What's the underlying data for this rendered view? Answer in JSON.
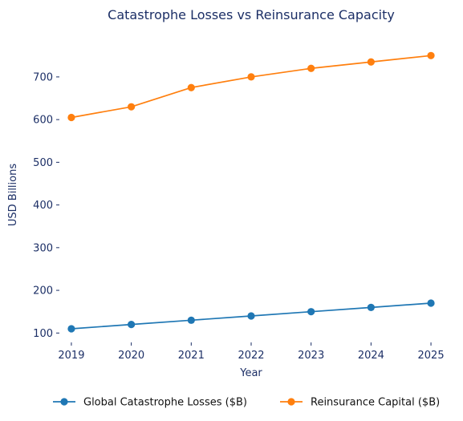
{
  "chart_data": {
    "type": "line",
    "title": "Catastrophe Losses vs Reinsurance Capacity",
    "xlabel": "Year",
    "ylabel": "USD Billions",
    "x": [
      2019,
      2020,
      2021,
      2022,
      2023,
      2024,
      2025
    ],
    "xticks": [
      2019,
      2020,
      2021,
      2022,
      2023,
      2024,
      2025
    ],
    "yticks": [
      100,
      200,
      300,
      400,
      500,
      600,
      700
    ],
    "ylim": [
      78,
      790
    ],
    "xlim": [
      2018.8,
      2025.2
    ],
    "grid": false,
    "legend_position": "bottom-center",
    "series": [
      {
        "name": "Global Catastrophe Losses ($B)",
        "color": "#1f77b4",
        "values": [
          110,
          120,
          130,
          140,
          150,
          160,
          170
        ]
      },
      {
        "name": "Reinsurance Capital ($B)",
        "color": "#ff7f0e",
        "values": [
          605,
          630,
          675,
          700,
          720,
          735,
          750
        ]
      }
    ]
  }
}
